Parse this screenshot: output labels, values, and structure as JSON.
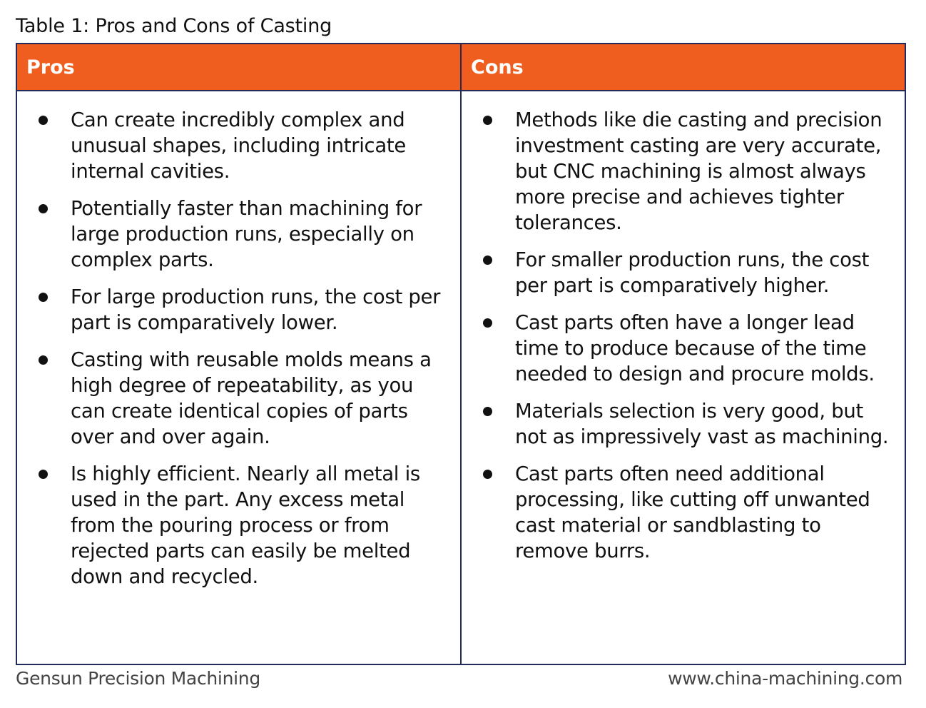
{
  "caption": "Table 1: Pros and Cons of Casting",
  "colors": {
    "header_bg": "#f05e1f",
    "header_text": "#ffffff",
    "border": "#232a5c",
    "body_text": "#111111",
    "footer_text": "#444444"
  },
  "table": {
    "headers": [
      "Pros",
      "Cons"
    ],
    "pros": [
      "Can create incredibly complex and unusual shapes, including intricate internal cavities.",
      "Potentially faster than machining for large production runs, especially on complex parts.",
      "For large production runs, the cost per part is comparatively lower.",
      "Casting with reusable molds means a high degree of repeatability, as you can create identical copies of parts over and over again.",
      "Is highly efficient. Nearly all metal is used in the part. Any excess metal from the pouring process or from rejected parts can easily be melted down and recycled."
    ],
    "cons": [
      "Methods like die casting and precision investment casting are very accurate, but CNC machining is almost always more precise and achieves tighter tolerances.",
      "For smaller production runs, the cost per part is comparatively higher.",
      "Cast parts often have a longer lead time to produce because of the time needed to design and procure molds.",
      "Materials selection is very good, but not as impressively vast as machining.",
      "Cast parts often need additional processing, like cutting off unwanted cast material or sandblasting to remove burrs."
    ]
  },
  "footer": {
    "company": "Gensun Precision Machining",
    "website": "www.china-machining.com"
  }
}
